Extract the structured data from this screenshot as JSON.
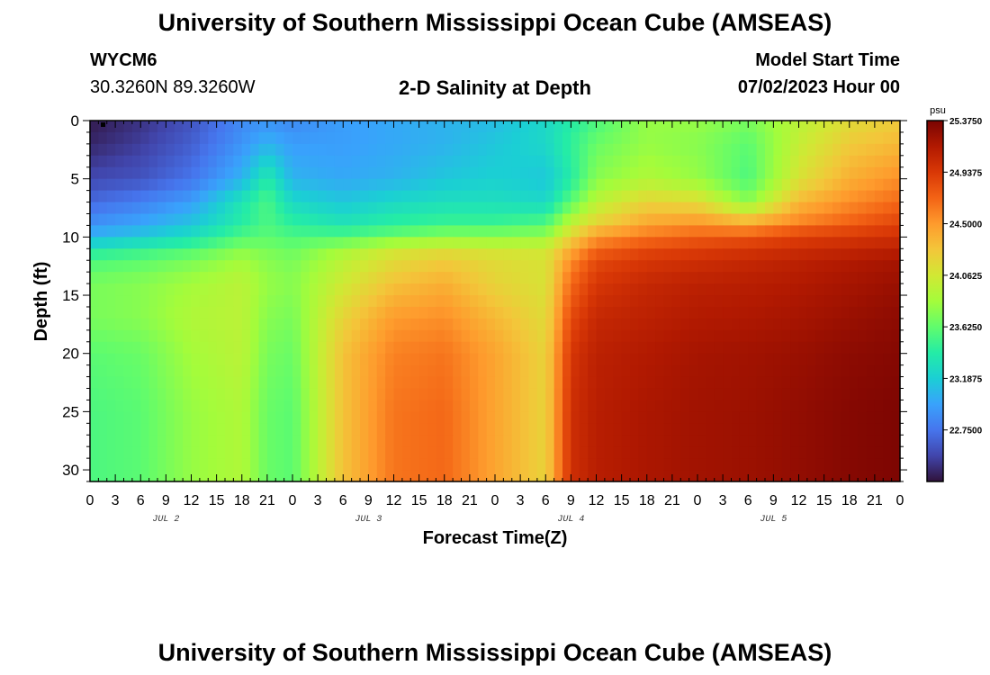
{
  "header": {
    "title": "University of Southern Mississippi Ocean Cube (AMSEAS)",
    "station_id": "WYCM6",
    "station_coords": "30.3260N  89.3260W",
    "plot_title": "2-D Salinity at Depth",
    "model_start_label": "Model Start Time",
    "model_start_value": "07/02/2023 Hour 00"
  },
  "footer": {
    "title": "University of Southern Mississippi Ocean Cube (AMSEAS)"
  },
  "chart_data": {
    "type": "heatmap",
    "title": "2-D Salinity at Depth",
    "xlabel": "Forecast Time(Z)",
    "ylabel": "Depth (ft)",
    "x_tick_labels": [
      "0",
      "3",
      "6",
      "9",
      "12",
      "15",
      "18",
      "21",
      "0",
      "3",
      "6",
      "9",
      "12",
      "15",
      "18",
      "21",
      "0",
      "3",
      "6",
      "9",
      "12",
      "15",
      "18",
      "21",
      "0",
      "3",
      "6",
      "9",
      "12",
      "15",
      "18",
      "21",
      "0"
    ],
    "x_day_labels": [
      "JUL 2",
      "JUL 3",
      "JUL 4",
      "JUL 5"
    ],
    "xlim_hours": [
      0,
      96
    ],
    "y_ticks": [
      0,
      5,
      10,
      15,
      20,
      25,
      30
    ],
    "ylim": [
      0,
      31
    ],
    "y_inverted": true,
    "colorbar": {
      "unit": "psu",
      "min": 22.3125,
      "max": 25.375,
      "tick_values": [
        25.375,
        24.9375,
        24.5,
        24.0625,
        23.625,
        23.1875,
        22.75
      ],
      "tick_labels": [
        "25.3750",
        "24.9375",
        "24.5000",
        "24.0625",
        "23.6250",
        "23.1875",
        "22.7500"
      ],
      "colormap": [
        "#30123b",
        "#4145ab",
        "#4675ed",
        "#39a2fc",
        "#1bcfd4",
        "#24eca6",
        "#61fc6c",
        "#a4fc3b",
        "#d1e834",
        "#f3c63a",
        "#fe9b2d",
        "#f36315",
        "#d93806",
        "#b11901",
        "#7a0402"
      ]
    },
    "salinity_grid": {
      "depths_ft": [
        0,
        2,
        5,
        7,
        8.5,
        10,
        11,
        12,
        14,
        17,
        20,
        25,
        31
      ],
      "hours": [
        0,
        6,
        12,
        18,
        21,
        24,
        30,
        36,
        42,
        48,
        54,
        57,
        60,
        66,
        72,
        78,
        84,
        90,
        96
      ],
      "values": [
        [
          22.35,
          22.45,
          22.6,
          22.85,
          22.9,
          22.85,
          22.95,
          23.0,
          23.05,
          23.1,
          23.25,
          23.4,
          23.55,
          23.8,
          23.8,
          23.7,
          23.95,
          24.15,
          24.25
        ],
        [
          22.4,
          22.5,
          22.65,
          22.9,
          23.05,
          22.95,
          22.95,
          23.0,
          23.05,
          23.15,
          23.25,
          23.45,
          23.65,
          23.8,
          23.75,
          23.6,
          24.0,
          24.25,
          24.35
        ],
        [
          22.55,
          22.6,
          22.75,
          23.05,
          23.4,
          23.05,
          23.0,
          23.05,
          23.15,
          23.2,
          23.15,
          23.4,
          23.75,
          23.9,
          23.8,
          23.55,
          24.1,
          24.4,
          24.55
        ],
        [
          22.7,
          22.8,
          22.95,
          23.35,
          23.55,
          23.25,
          23.15,
          23.25,
          23.3,
          23.3,
          23.25,
          23.6,
          23.95,
          24.2,
          24.15,
          23.75,
          24.35,
          24.55,
          24.7
        ],
        [
          22.85,
          22.95,
          23.1,
          23.4,
          23.55,
          23.4,
          23.3,
          23.4,
          23.45,
          23.45,
          23.5,
          23.9,
          24.15,
          24.4,
          24.45,
          24.3,
          24.55,
          24.7,
          24.85
        ],
        [
          23.05,
          23.15,
          23.3,
          23.55,
          23.6,
          23.55,
          23.55,
          23.65,
          23.75,
          23.75,
          23.8,
          24.2,
          24.5,
          24.65,
          24.75,
          24.8,
          24.9,
          24.95,
          25.0
        ],
        [
          23.35,
          23.45,
          23.55,
          23.75,
          23.7,
          23.65,
          23.85,
          24.05,
          24.1,
          24.05,
          24.05,
          24.4,
          24.7,
          24.85,
          24.9,
          24.95,
          25.0,
          25.05,
          25.1
        ],
        [
          23.55,
          23.6,
          23.7,
          23.85,
          23.75,
          23.7,
          23.95,
          24.15,
          24.25,
          24.15,
          24.1,
          24.55,
          24.85,
          24.95,
          25.0,
          25.05,
          25.1,
          25.15,
          25.2
        ],
        [
          23.7,
          23.75,
          23.85,
          23.95,
          23.8,
          23.75,
          24.05,
          24.3,
          24.4,
          24.2,
          24.1,
          24.7,
          24.95,
          25.05,
          25.1,
          25.12,
          25.15,
          25.2,
          25.25
        ],
        [
          23.7,
          23.75,
          23.9,
          23.95,
          23.75,
          23.7,
          24.2,
          24.5,
          24.55,
          24.35,
          24.15,
          24.85,
          25.05,
          25.1,
          25.15,
          25.17,
          25.2,
          25.25,
          25.3
        ],
        [
          23.6,
          23.65,
          23.85,
          23.95,
          23.7,
          23.65,
          24.3,
          24.6,
          24.65,
          24.45,
          24.2,
          24.95,
          25.1,
          25.15,
          25.2,
          25.22,
          25.25,
          25.3,
          25.33
        ],
        [
          23.55,
          23.6,
          23.8,
          23.9,
          23.65,
          23.6,
          24.3,
          24.65,
          24.7,
          24.45,
          24.2,
          25.0,
          25.12,
          25.18,
          25.22,
          25.24,
          25.28,
          25.33,
          25.36
        ],
        [
          23.55,
          23.6,
          23.8,
          23.9,
          23.65,
          23.6,
          24.3,
          24.65,
          24.7,
          24.45,
          24.2,
          25.0,
          25.12,
          25.18,
          25.22,
          25.24,
          25.28,
          25.33,
          25.36
        ]
      ]
    }
  }
}
